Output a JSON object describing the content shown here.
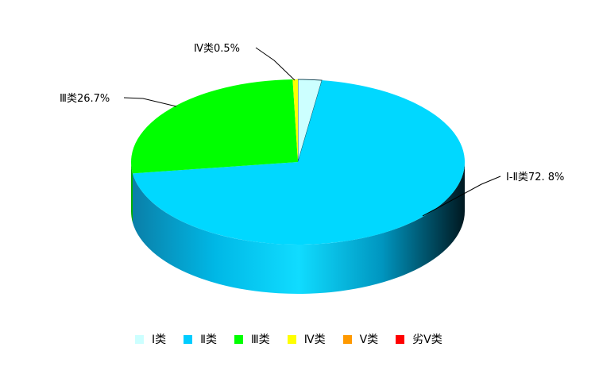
{
  "chart_data": {
    "type": "pie",
    "style": "3d",
    "series": [
      {
        "name": "Ⅰ类",
        "value": 2.3,
        "color": "#ccffff"
      },
      {
        "name": "Ⅱ类",
        "value": 70.5,
        "color": "#00d8ff"
      },
      {
        "name": "Ⅲ类",
        "value": 26.7,
        "color": "#00ff00"
      },
      {
        "name": "Ⅳ类",
        "value": 0.5,
        "color": "#ffff00"
      },
      {
        "name": "Ⅴ类",
        "value": 0,
        "color": "#ff9900"
      },
      {
        "name": "劣Ⅴ类",
        "value": 0,
        "color": "#ff0000"
      }
    ],
    "data_labels": [
      {
        "text": "Ⅳ类0.5%"
      },
      {
        "text": "Ⅲ类26.7%"
      },
      {
        "text": "Ⅰ-Ⅱ类72. 8%"
      }
    ],
    "legend_position": "bottom"
  }
}
